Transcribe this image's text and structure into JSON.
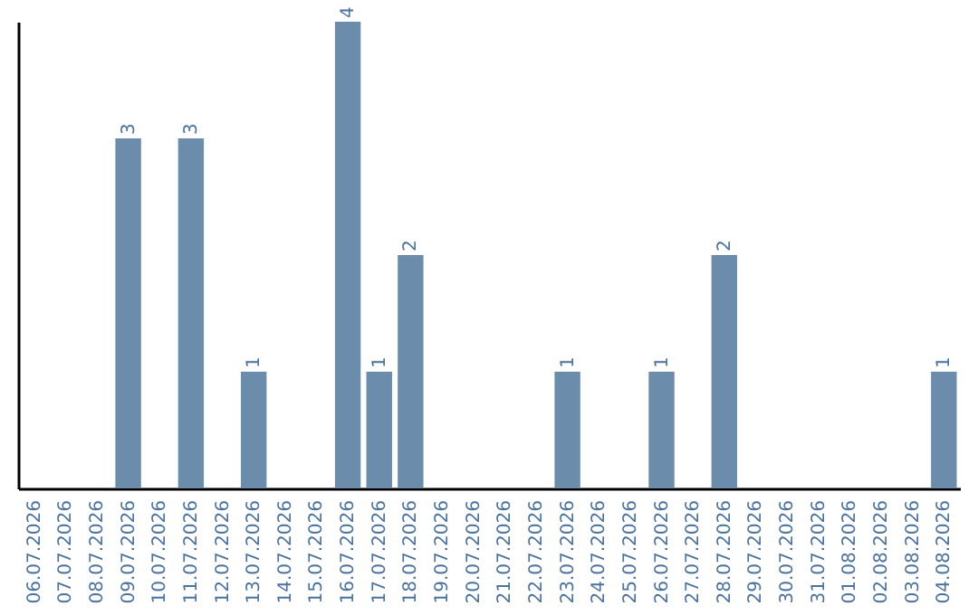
{
  "chart_data": {
    "type": "bar",
    "categories": [
      "06.07.2026",
      "07.07.2026",
      "08.07.2026",
      "09.07.2026",
      "10.07.2026",
      "11.07.2026",
      "12.07.2026",
      "13.07.2026",
      "14.07.2026",
      "15.07.2026",
      "16.07.2026",
      "17.07.2026",
      "18.07.2026",
      "19.07.2026",
      "20.07.2026",
      "21.07.2026",
      "22.07.2026",
      "23.07.2026",
      "24.07.2026",
      "25.07.2026",
      "26.07.2026",
      "27.07.2026",
      "28.07.2026",
      "29.07.2026",
      "30.07.2026",
      "31.07.2026",
      "01.08.2026",
      "02.08.2026",
      "03.08.2026",
      "04.08.2026"
    ],
    "values": [
      0,
      0,
      0,
      3,
      0,
      3,
      0,
      1,
      0,
      0,
      4,
      1,
      2,
      0,
      0,
      0,
      0,
      1,
      0,
      0,
      1,
      0,
      2,
      0,
      0,
      0,
      0,
      0,
      0,
      1
    ],
    "value_labels": [
      null,
      null,
      null,
      "3",
      null,
      "3",
      null,
      "1",
      null,
      null,
      "4",
      "1",
      "2",
      null,
      null,
      null,
      null,
      "1",
      null,
      null,
      "1",
      null,
      "2",
      null,
      null,
      null,
      null,
      null,
      null,
      "1"
    ],
    "color": "#6b8cab",
    "ylim": [
      0,
      4
    ],
    "tick_labels": "x",
    "grid": false
  }
}
